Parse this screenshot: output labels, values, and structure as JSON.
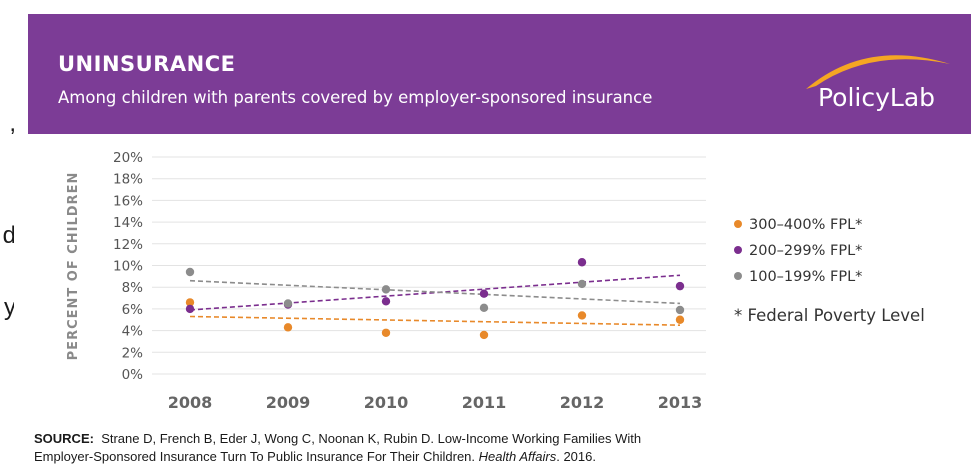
{
  "edge_fragments": [
    ",",
    "d",
    "y"
  ],
  "header": {
    "title": "UNINSURANCE",
    "subtitle": "Among children with parents covered by employer-sponsored insurance",
    "brand": "PolicyLab"
  },
  "chart_data": {
    "type": "scatter",
    "title": "UNINSURANCE",
    "subtitle": "Among children with parents covered by employer-sponsored insurance",
    "xlabel": "",
    "ylabel": "PERCENT OF CHILDREN",
    "x": [
      2008,
      2009,
      2010,
      2011,
      2012,
      2013
    ],
    "x_ticks": [
      "2008",
      "2009",
      "2010",
      "2011",
      "2012",
      "2013"
    ],
    "y_ticks": [
      "0%",
      "2%",
      "4%",
      "6%",
      "8%",
      "10%",
      "12%",
      "14%",
      "16%",
      "18%",
      "20%"
    ],
    "ylim": [
      0,
      20
    ],
    "grid": true,
    "legend_position": "right",
    "trendlines": "dashed linear",
    "series": [
      {
        "name": "300–400% FPL*",
        "color": "#e8892a",
        "values": [
          6.6,
          4.3,
          3.8,
          3.6,
          5.4,
          5.0
        ],
        "trend": [
          5.3,
          4.5
        ]
      },
      {
        "name": "200–299% FPL*",
        "color": "#7b2e8e",
        "values": [
          6.0,
          6.4,
          6.7,
          7.4,
          10.3,
          8.1
        ],
        "trend": [
          5.9,
          9.1
        ]
      },
      {
        "name": "100–199% FPL*",
        "color": "#8c8c8c",
        "values": [
          9.4,
          6.5,
          7.8,
          6.1,
          8.3,
          5.9
        ],
        "trend": [
          8.6,
          6.5
        ]
      }
    ],
    "note": "* Federal Poverty Level"
  },
  "source": {
    "label": "SOURCE:",
    "line1": "Strane D, French B, Eder J, Wong C, Noonan K, Rubin D. Low-Income Working Families With",
    "line2_a": "Employer-Sponsored Insurance Turn To Public Insurance For Their Children.",
    "journal": "Health Affairs",
    "year": ". 2016."
  },
  "colors": {
    "banner": "#7c3c96",
    "banner_text": "#ffffff",
    "brand_swoosh": "#f5a623",
    "grid": "#e3e3e3",
    "axis_text": "#555555",
    "year_text": "#666666"
  }
}
